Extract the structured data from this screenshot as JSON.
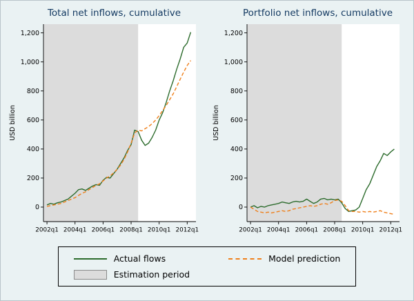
{
  "figure": {
    "background": "#eaf2f3",
    "plot_background": "#ffffff",
    "title_color": "#143a62",
    "legend": {
      "items": [
        {
          "label": "Actual flows",
          "swatch": "line-solid",
          "color": "#2c6b2c"
        },
        {
          "label": "Model prediction",
          "swatch": "line-dashed",
          "color": "#ef7f1a"
        },
        {
          "label": "Estimation period",
          "swatch": "box",
          "color": "#dcdcdc"
        }
      ]
    }
  },
  "chart_data": [
    {
      "type": "line",
      "title": "Total net inflows, cumulative",
      "ylabel": "USD billion",
      "x_start": "2002q1",
      "x_end": "2012q2",
      "x_freq": "quarterly",
      "xlim": [
        -1,
        42.5
      ],
      "ylim": [
        -100,
        1260
      ],
      "x_tick_positions": [
        0,
        8,
        16,
        24,
        32,
        40
      ],
      "x_ticks": [
        "2002q1",
        "2004q1",
        "2006q1",
        "2008q1",
        "2010q1",
        "2012q1"
      ],
      "y_ticks": [
        0,
        200,
        400,
        600,
        800,
        1000,
        1200
      ],
      "y_tick_labels": [
        "0",
        "200",
        "400",
        "600",
        "800",
        "1,000",
        "1,200"
      ],
      "grid": false,
      "shade_from": -1,
      "shade_to": 26,
      "shade_color": "#dcdcdc",
      "shade_label": "Estimation period",
      "series": [
        {
          "name": "Actual flows",
          "color": "#2c6b2c",
          "dash": "solid",
          "values": [
            15,
            25,
            20,
            30,
            35,
            45,
            55,
            75,
            95,
            120,
            125,
            115,
            130,
            145,
            155,
            150,
            185,
            205,
            200,
            230,
            260,
            300,
            340,
            390,
            430,
            530,
            520,
            460,
            425,
            440,
            480,
            530,
            600,
            650,
            720,
            800,
            870,
            950,
            1020,
            1100,
            1130,
            1205
          ]
        },
        {
          "name": "Model prediction",
          "color": "#ef7f1a",
          "dash": "dashed",
          "values": [
            5,
            10,
            15,
            20,
            25,
            35,
            45,
            55,
            65,
            80,
            95,
            105,
            120,
            135,
            150,
            160,
            180,
            200,
            215,
            235,
            260,
            290,
            330,
            380,
            440,
            510,
            530,
            525,
            540,
            555,
            575,
            600,
            630,
            665,
            700,
            740,
            780,
            830,
            880,
            930,
            975,
            1010
          ]
        }
      ]
    },
    {
      "type": "line",
      "title": "Portfolio net inflows, cumulative",
      "ylabel": "USD billion",
      "x_start": "2002q1",
      "x_end": "2012q2",
      "x_freq": "quarterly",
      "xlim": [
        -1,
        42.5
      ],
      "ylim": [
        -100,
        1260
      ],
      "x_tick_positions": [
        0,
        8,
        16,
        24,
        32,
        40
      ],
      "x_ticks": [
        "2002q1",
        "2004q1",
        "2006q1",
        "2008q1",
        "2010q1",
        "2012q1"
      ],
      "y_ticks": [
        0,
        200,
        400,
        600,
        800,
        1000,
        1200
      ],
      "y_tick_labels": [
        "0",
        "200",
        "400",
        "600",
        "800",
        "1,000",
        "1,200"
      ],
      "grid": false,
      "shade_from": -1,
      "shade_to": 26,
      "shade_color": "#dcdcdc",
      "shade_label": "Estimation period",
      "series": [
        {
          "name": "Actual flows",
          "color": "#2c6b2c",
          "dash": "solid",
          "values": [
            0,
            10,
            -5,
            5,
            0,
            10,
            15,
            20,
            25,
            35,
            30,
            25,
            35,
            40,
            35,
            40,
            55,
            40,
            25,
            35,
            55,
            60,
            50,
            55,
            50,
            55,
            30,
            -10,
            -30,
            -25,
            -20,
            0,
            60,
            120,
            160,
            220,
            280,
            320,
            370,
            355,
            380,
            400
          ]
        },
        {
          "name": "Model prediction",
          "color": "#ef7f1a",
          "dash": "dashed",
          "values": [
            0,
            -15,
            -30,
            -35,
            -40,
            -35,
            -40,
            -35,
            -30,
            -25,
            -30,
            -25,
            -15,
            -10,
            -5,
            0,
            5,
            10,
            5,
            10,
            20,
            25,
            20,
            30,
            45,
            50,
            40,
            10,
            -25,
            -30,
            -30,
            -35,
            -30,
            -35,
            -30,
            -35,
            -30,
            -25,
            -35,
            -40,
            -45,
            -50
          ]
        }
      ]
    }
  ]
}
